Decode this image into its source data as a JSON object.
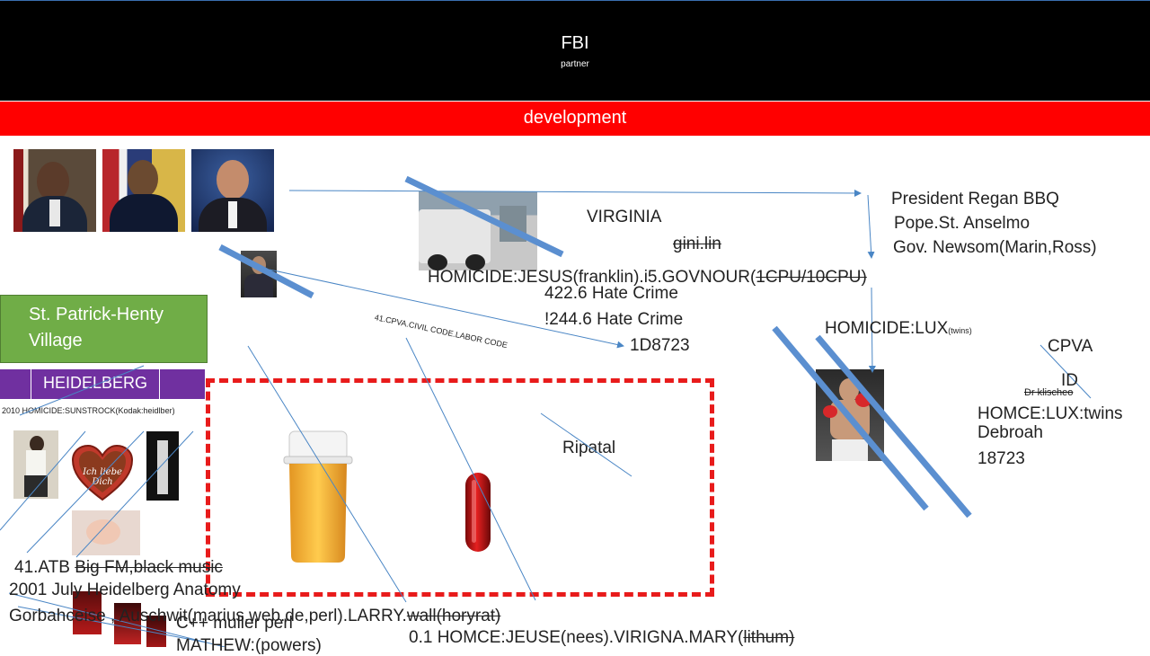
{
  "header": {
    "title": "FBI",
    "subtitle": "partner"
  },
  "banner": {
    "label": "development"
  },
  "colors": {
    "header_bg": "#000000",
    "banner_bg": "#ff0000",
    "green_box": "#70ad47",
    "purple_box": "#7030a0",
    "dash_red": "#e81b1b",
    "line_blue": "#4a86c5"
  },
  "texts": {
    "virginia": "VIRGINIA",
    "gini": "gini.lin",
    "homicide_jesus_main": "HOMICIDE:JESUS(franklin).i5.GOVNOUR(",
    "homicide_jesus_strike": "1CPU/10CPU)",
    "hate1": "422.6 Hate Crime",
    "hate2": "!244.6 Hate Crime",
    "code_1d": "1D8723",
    "cpva_code": "41.CPVA.CIVIL CODE.LABOR CODE",
    "regan": "President Regan BBQ",
    "pope": "Pope.St. Anselmo",
    "newsom": "Gov. Newsom(Marin,Ross)",
    "lux": "HOMICIDE:LUX",
    "lux_small": "(twins)",
    "cpva": "CPVA",
    "id": "ID",
    "klischeo": "Dr klischeo",
    "homce_lux": "HOMCE:LUX:twins",
    "debroah": "Debroah",
    "num18723": "18723",
    "green_box": "St. Patrick-Henty Village",
    "purple_box": "HEIDELBERG",
    "sunstrock": "2010 HOMICIDE:SUNSTROCK(Kodak:heidlber)",
    "ripatal": "Ripatal",
    "atb_prefix": "41.ATB ",
    "atb_strike": "Big FM,black music",
    "july": "2001 July Heidelberg Anatomy",
    "gorb": "Gorbahceise , Auschwit(marius.web.de,perl).LARRY.",
    "gorb_strike": "wall(horyrat)",
    "cpp": "C++ muller perl",
    "mathew": "MATHEW:(powers)",
    "homce_jeuse": "0.1 HOMCE:JEUSE(nees).VIRIGNA.MARY(",
    "homce_jeuse_strike": "lithum)"
  },
  "icons": [
    "arrow-icon",
    "pill-bottle-icon",
    "red-capsule-icon",
    "heart-cookie-icon"
  ]
}
